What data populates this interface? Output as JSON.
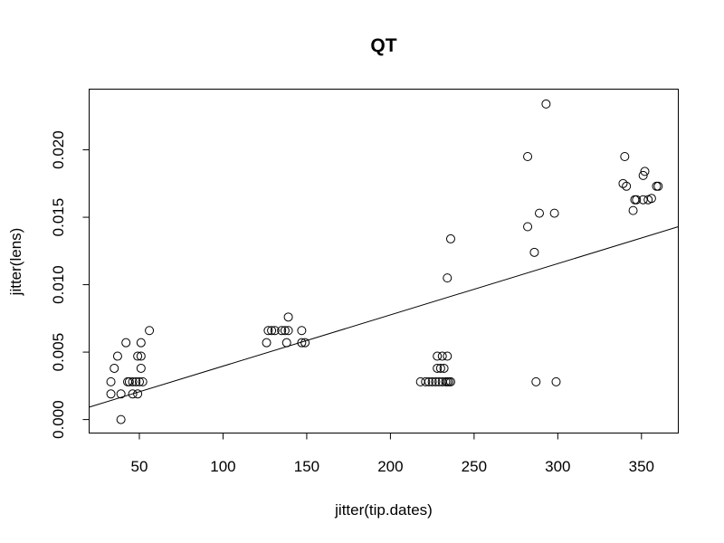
{
  "chart_data": {
    "type": "scatter",
    "title": "QT",
    "xlabel": "jitter(tip.dates)",
    "ylabel": "jitter(lens)",
    "xlim": [
      20,
      372
    ],
    "ylim": [
      -0.001,
      0.0245
    ],
    "x_ticks": [
      50,
      100,
      150,
      200,
      250,
      300,
      350
    ],
    "x_tick_labels": [
      "50",
      "100",
      "150",
      "200",
      "250",
      "300",
      "350"
    ],
    "y_ticks": [
      0.0,
      0.005,
      0.01,
      0.015,
      0.02
    ],
    "y_tick_labels": [
      "0.000",
      "0.005",
      "0.010",
      "0.015",
      "0.020"
    ],
    "grid": false,
    "points": [
      {
        "x": 39,
        "y": 0.0
      },
      {
        "x": 33,
        "y": 0.0019
      },
      {
        "x": 39,
        "y": 0.0019
      },
      {
        "x": 46,
        "y": 0.0019
      },
      {
        "x": 49,
        "y": 0.0019
      },
      {
        "x": 33,
        "y": 0.0028
      },
      {
        "x": 43,
        "y": 0.0028
      },
      {
        "x": 44,
        "y": 0.0028
      },
      {
        "x": 46,
        "y": 0.0028
      },
      {
        "x": 48,
        "y": 0.0028
      },
      {
        "x": 50,
        "y": 0.0028
      },
      {
        "x": 52,
        "y": 0.0028
      },
      {
        "x": 35,
        "y": 0.0038
      },
      {
        "x": 51,
        "y": 0.0038
      },
      {
        "x": 37,
        "y": 0.0047
      },
      {
        "x": 49,
        "y": 0.0047
      },
      {
        "x": 51,
        "y": 0.0047
      },
      {
        "x": 42,
        "y": 0.0057
      },
      {
        "x": 51,
        "y": 0.0057
      },
      {
        "x": 56,
        "y": 0.0066
      },
      {
        "x": 126,
        "y": 0.0057
      },
      {
        "x": 138,
        "y": 0.0057
      },
      {
        "x": 147,
        "y": 0.0057
      },
      {
        "x": 149,
        "y": 0.0057
      },
      {
        "x": 127,
        "y": 0.0066
      },
      {
        "x": 129,
        "y": 0.0066
      },
      {
        "x": 131,
        "y": 0.0066
      },
      {
        "x": 135,
        "y": 0.0066
      },
      {
        "x": 137,
        "y": 0.0066
      },
      {
        "x": 139,
        "y": 0.0066
      },
      {
        "x": 147,
        "y": 0.0066
      },
      {
        "x": 139,
        "y": 0.0076
      },
      {
        "x": 218,
        "y": 0.0028
      },
      {
        "x": 221,
        "y": 0.0028
      },
      {
        "x": 223,
        "y": 0.0028
      },
      {
        "x": 225,
        "y": 0.0028
      },
      {
        "x": 227,
        "y": 0.0028
      },
      {
        "x": 229,
        "y": 0.0028
      },
      {
        "x": 231,
        "y": 0.0028
      },
      {
        "x": 233,
        "y": 0.0028
      },
      {
        "x": 234,
        "y": 0.0028
      },
      {
        "x": 235,
        "y": 0.0028
      },
      {
        "x": 236,
        "y": 0.0028
      },
      {
        "x": 228,
        "y": 0.0038
      },
      {
        "x": 230,
        "y": 0.0038
      },
      {
        "x": 232,
        "y": 0.0038
      },
      {
        "x": 228,
        "y": 0.0047
      },
      {
        "x": 231,
        "y": 0.0047
      },
      {
        "x": 234,
        "y": 0.0047
      },
      {
        "x": 234,
        "y": 0.0105
      },
      {
        "x": 236,
        "y": 0.0134
      },
      {
        "x": 287,
        "y": 0.0028
      },
      {
        "x": 299,
        "y": 0.0028
      },
      {
        "x": 286,
        "y": 0.0124
      },
      {
        "x": 282,
        "y": 0.0143
      },
      {
        "x": 289,
        "y": 0.0153
      },
      {
        "x": 298,
        "y": 0.0153
      },
      {
        "x": 282,
        "y": 0.0195
      },
      {
        "x": 293,
        "y": 0.0234
      },
      {
        "x": 345,
        "y": 0.0155
      },
      {
        "x": 346,
        "y": 0.0163
      },
      {
        "x": 347,
        "y": 0.0163
      },
      {
        "x": 351,
        "y": 0.0163
      },
      {
        "x": 354,
        "y": 0.0163
      },
      {
        "x": 356,
        "y": 0.0164
      },
      {
        "x": 339,
        "y": 0.0175
      },
      {
        "x": 341,
        "y": 0.0173
      },
      {
        "x": 359,
        "y": 0.0173
      },
      {
        "x": 360,
        "y": 0.0173
      },
      {
        "x": 351,
        "y": 0.0181
      },
      {
        "x": 352,
        "y": 0.0184
      },
      {
        "x": 340,
        "y": 0.0195
      }
    ],
    "fit_line": {
      "x": [
        20,
        372
      ],
      "y": [
        0.00092,
        0.0143
      ]
    }
  }
}
